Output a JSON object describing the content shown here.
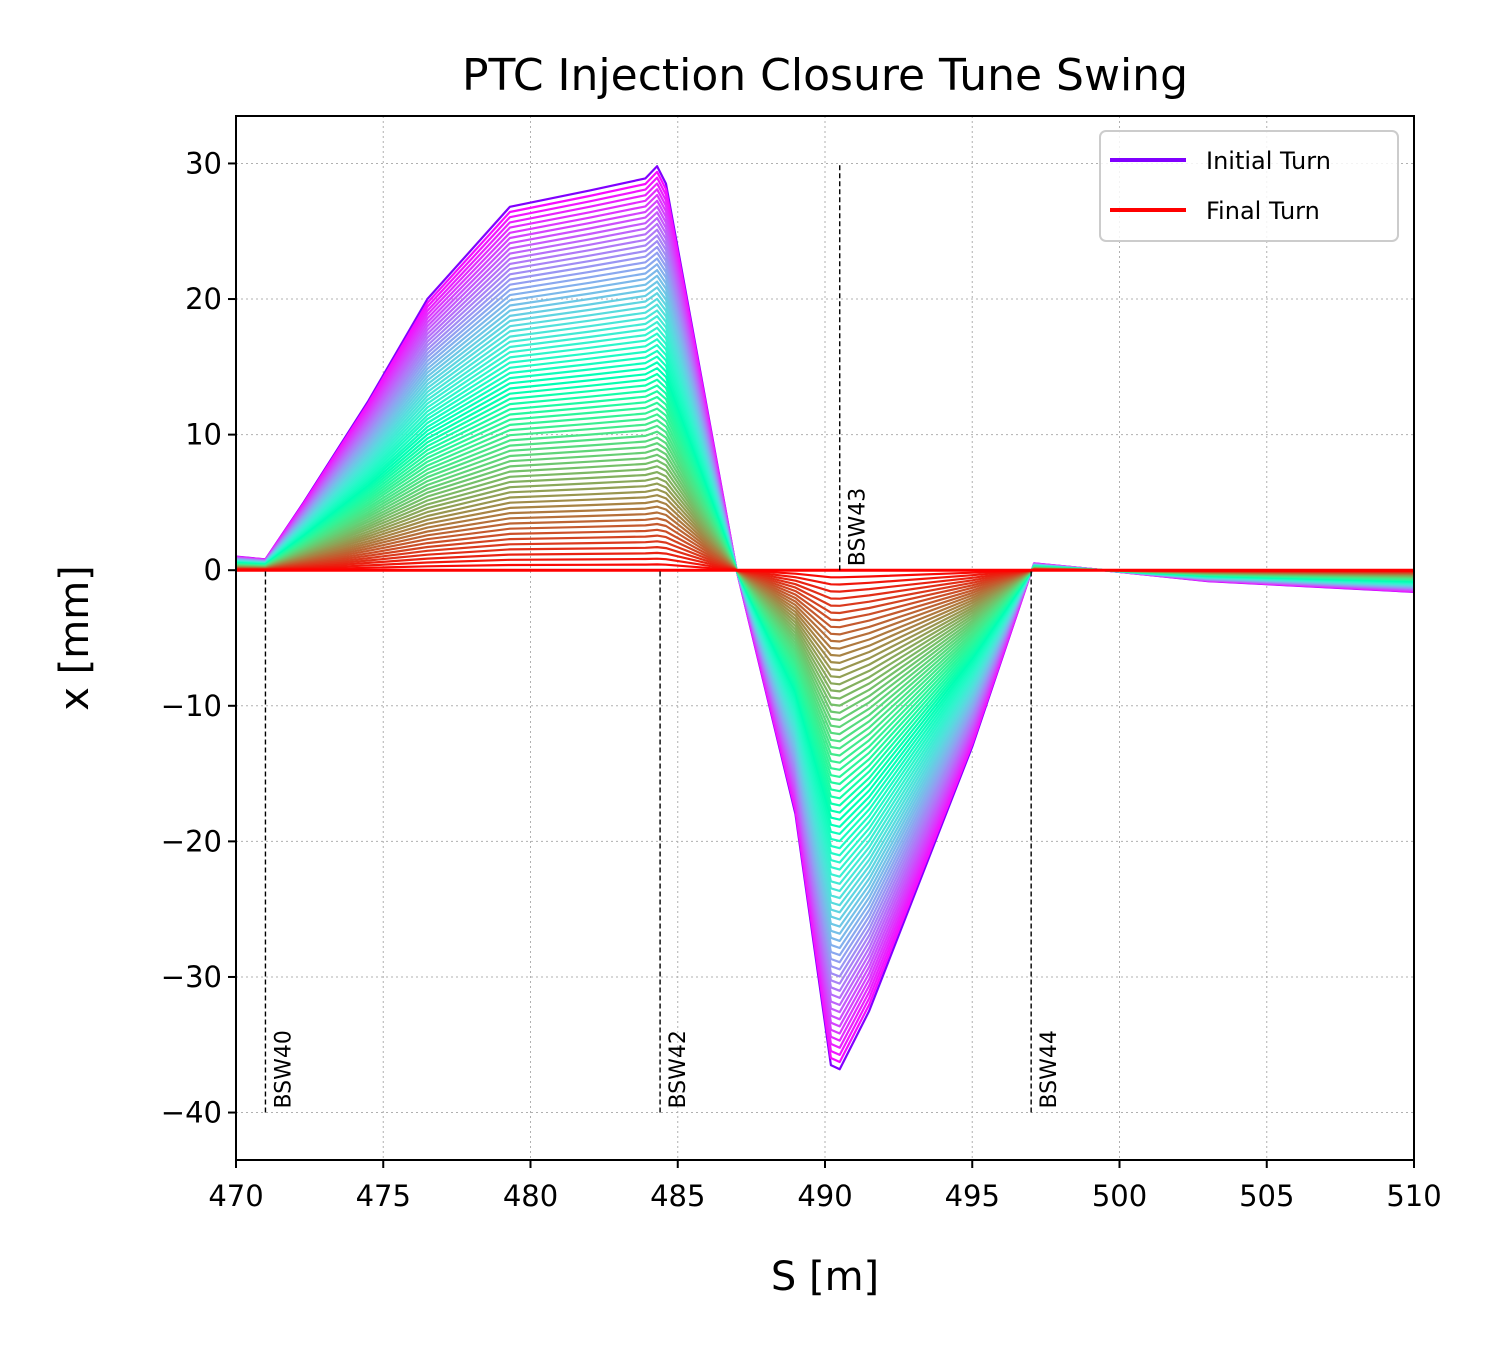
{
  "chart_data": {
    "type": "line",
    "title": "PTC Injection Closure Tune Swing",
    "xlabel": "S [m]",
    "ylabel": "x [mm]",
    "xlim": [
      470,
      510
    ],
    "ylim": [
      -43.5,
      33.5
    ],
    "xticks": [
      470,
      475,
      480,
      485,
      490,
      495,
      500,
      505,
      510
    ],
    "yticks": [
      -40,
      -30,
      -20,
      -10,
      0,
      10,
      20,
      30
    ],
    "xtick_labels": [
      "470",
      "475",
      "480",
      "485",
      "490",
      "495",
      "500",
      "505",
      "510"
    ],
    "ytick_labels": [
      "−40",
      "−30",
      "−20",
      "−10",
      "0",
      "10",
      "20",
      "30"
    ],
    "grid": true,
    "legend_position": "top-right",
    "colormap": "rainbow (purple → red)",
    "series": [
      {
        "name": "Initial Turn",
        "color": "#8000ff",
        "points": [
          [
            470,
            1.0
          ],
          [
            471,
            0.8
          ],
          [
            472.3,
            5.0
          ],
          [
            474.5,
            12.5
          ],
          [
            476.5,
            20.0
          ],
          [
            479.3,
            26.8
          ],
          [
            482,
            28.0
          ],
          [
            483.9,
            28.9
          ],
          [
            484.3,
            29.8
          ],
          [
            484.6,
            28.5
          ],
          [
            487,
            0.0
          ],
          [
            489,
            -18.0
          ],
          [
            490.2,
            -36.5
          ],
          [
            490.5,
            -36.8
          ],
          [
            491.5,
            -32.5
          ],
          [
            495,
            -13.0
          ],
          [
            497.1,
            0.5
          ],
          [
            499,
            0.1
          ],
          [
            503,
            -0.8
          ],
          [
            510,
            -1.6
          ]
        ]
      },
      {
        "name": "Final Turn",
        "color": "#ff0000",
        "points": [
          [
            470,
            0.0
          ],
          [
            487,
            0.0
          ],
          [
            497.1,
            0.0
          ],
          [
            510,
            0.0
          ]
        ]
      }
    ],
    "n_intermediate_turns": 70,
    "markers": [
      {
        "label": "BSW40",
        "s": 471.0,
        "y_from": -40,
        "y_to": 0
      },
      {
        "label": "BSW42",
        "s": 484.4,
        "y_from": -40,
        "y_to": 0
      },
      {
        "label": "BSW43",
        "s": 490.5,
        "y_from": 0,
        "y_to": 30
      },
      {
        "label": "BSW44",
        "s": 497.0,
        "y_from": -40,
        "y_to": 0
      }
    ]
  }
}
